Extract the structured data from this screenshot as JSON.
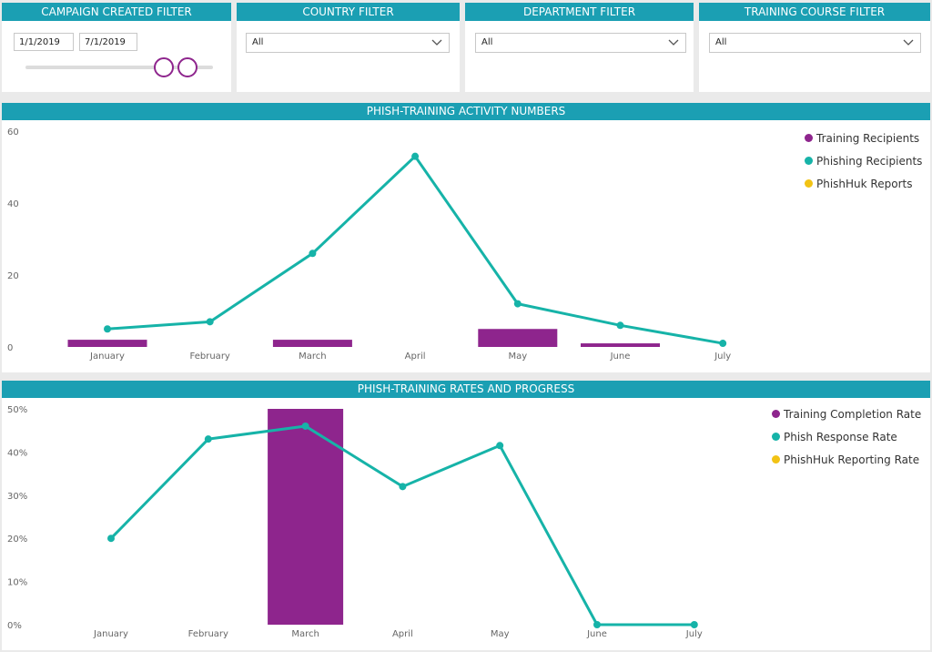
{
  "filters": {
    "campaign": {
      "title": "CAMPAIGN CREATED FILTER",
      "start_date": "1/1/2019",
      "end_date": "7/1/2019"
    },
    "country": {
      "title": "COUNTRY FILTER",
      "value": "All"
    },
    "department": {
      "title": "DEPARTMENT FILTER",
      "value": "All"
    },
    "training_course": {
      "title": "TRAINING COURSE FILTER",
      "value": "All"
    }
  },
  "colors": {
    "header": "#1b9fb3",
    "training": "#8e258d",
    "phishing": "#16b3a8",
    "phishhuk": "#f2c314"
  },
  "chart_data": [
    {
      "type": "bar+line",
      "title": "PHISH-TRAINING ACTIVITY NUMBERS",
      "categories": [
        "January",
        "February",
        "March",
        "April",
        "May",
        "June",
        "July"
      ],
      "ylim": [
        0,
        60
      ],
      "yticks": [
        "0",
        "20",
        "40",
        "60"
      ],
      "legend_position": "top-right",
      "series": [
        {
          "name": "Training Recipients",
          "kind": "bar",
          "values": [
            2,
            0,
            2,
            0,
            5,
            1,
            0
          ]
        },
        {
          "name": "Phishing Recipients",
          "kind": "line",
          "values": [
            5,
            7,
            26,
            53,
            12,
            6,
            1
          ]
        },
        {
          "name": "PhishHuk Reports",
          "kind": "bar",
          "values": [
            0,
            0,
            0,
            0,
            0,
            0,
            0
          ]
        }
      ]
    },
    {
      "type": "bar+line",
      "title": "PHISH-TRAINING RATES AND PROGRESS",
      "categories": [
        "January",
        "February",
        "March",
        "April",
        "May",
        "June",
        "July"
      ],
      "ylim": [
        0,
        50
      ],
      "yticks": [
        "0%",
        "10%",
        "20%",
        "30%",
        "40%",
        "50%"
      ],
      "legend_position": "top-right",
      "series": [
        {
          "name": "Training Completion Rate",
          "kind": "bar",
          "values": [
            0,
            0,
            50,
            0,
            0,
            0,
            0
          ]
        },
        {
          "name": "Phish Response Rate",
          "kind": "line",
          "values": [
            20,
            43,
            46,
            32,
            41.5,
            0,
            0
          ]
        },
        {
          "name": "PhishHuk Reporting Rate",
          "kind": "bar",
          "values": [
            0,
            0,
            0,
            0,
            0,
            0,
            0
          ]
        }
      ]
    }
  ]
}
